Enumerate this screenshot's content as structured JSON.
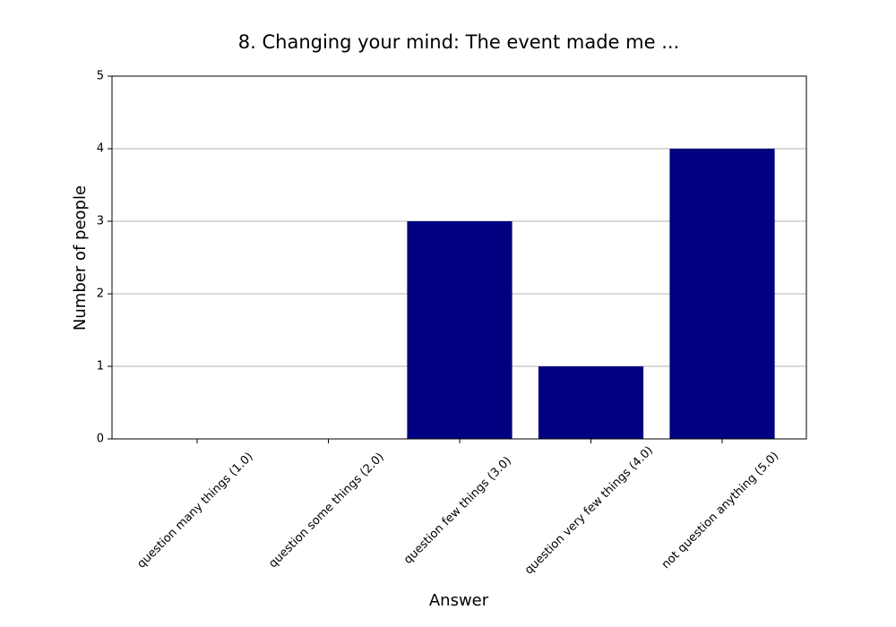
{
  "chart_data": {
    "type": "bar",
    "title": "8. Changing your mind: The event made me ...",
    "x_label": "Answer",
    "y_label": "Number of people",
    "categories": [
      "question many things (1.0)",
      "question some things (2.0)",
      "question few things (3.0)",
      "question very few things (4.0)",
      "not question anything (5.0)"
    ],
    "values": [
      0,
      0,
      3,
      1,
      4
    ],
    "color": "#000080",
    "ylim": [
      0,
      5
    ],
    "yticks": [
      0,
      1,
      2,
      3,
      4,
      5
    ],
    "grid": true
  }
}
